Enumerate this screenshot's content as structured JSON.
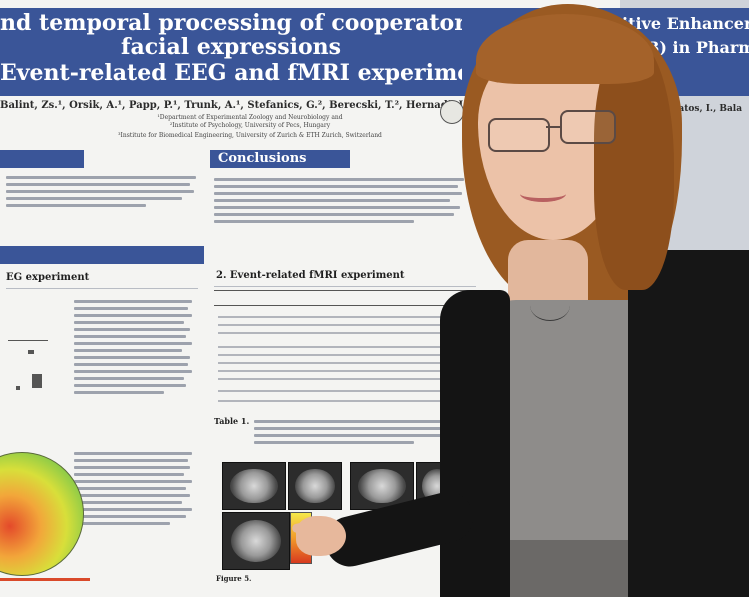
{
  "poster": {
    "title_line1": "nd temporal processing of cooperator and defector",
    "title_line2": "facial expressions",
    "title_line3": "Event-related EEG and fMRI experiments",
    "right_title_line1": "itive Enhancer E",
    "right_title_line2": "613) in Pharm",
    "authors": "Balint, Zs.¹, Orsik, A.¹, Papp, P.¹, Trunk, A.¹, Stefanics, G.², Berecski, T.², Hernadi, I.¹",
    "affiliation_1": "¹Department of Experimental Zoology and Neurobiology and",
    "affiliation_2": "²Institute of Psychology, University of Pecs, Hungary",
    "affiliation_3": "³Institute for Biomedical Engineering, University of Zurich & ETH Zurich, Switzerland",
    "right_author": "Lakatos, I., Bala",
    "section_conclusions": "Conclusions",
    "column_left_title": "EG experiment",
    "column_mid_title": "2. Event-related fMRI experiment",
    "table_caption": "Table 1.",
    "figure_caption": "Figure 5."
  },
  "colors": {
    "poster_blue": "#3a5598",
    "poster_bg": "#f4f4f2",
    "hair": "#9a5a22",
    "cardigan": "#141414",
    "top": "#8e8c8a"
  }
}
